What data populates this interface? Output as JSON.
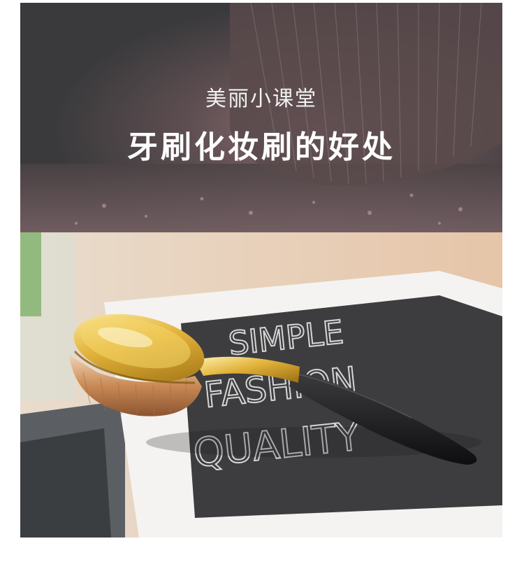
{
  "banner": {
    "subtitle": "美丽小课堂",
    "title": "牙刷化妆刷的好处"
  },
  "book": {
    "line1": "SIMPLE",
    "line2": "FASHION",
    "line3": "QUALITY"
  },
  "colors": {
    "banner_bg": "#3a3a3c",
    "powder": "#b79aa0",
    "brush_gold": "#d9a92c",
    "brush_handle": "#1b1b1d",
    "bristles": "#c98a55",
    "book_cover": "#3d3d3f"
  }
}
